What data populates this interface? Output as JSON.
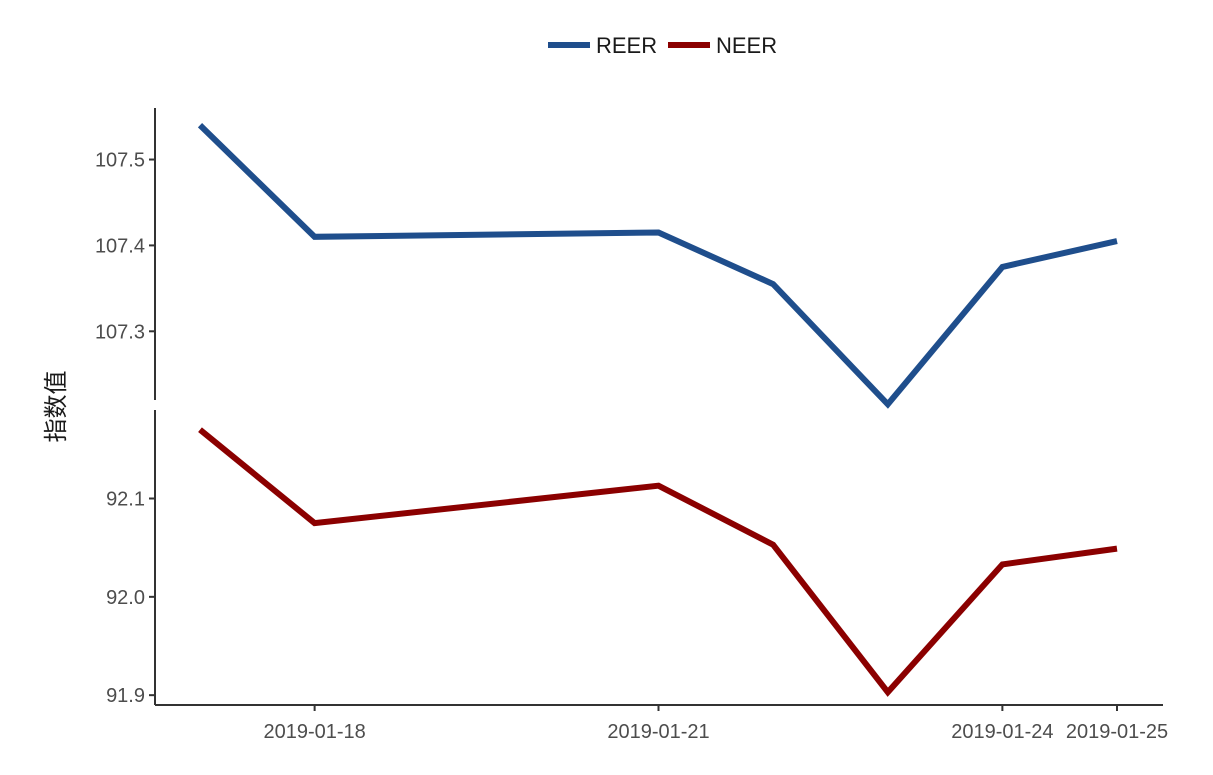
{
  "chart_data": {
    "type": "line",
    "title": "",
    "xlabel": "",
    "ylabel": "指数值",
    "legend_position": "top",
    "grid": false,
    "x": [
      "2019-01-17",
      "2019-01-18",
      "2019-01-21",
      "2019-01-22",
      "2019-01-23",
      "2019-01-24",
      "2019-01-25"
    ],
    "x_tick_labels": [
      "2019-01-18",
      "2019-01-21",
      "2019-01-24",
      "2019-01-25"
    ],
    "y_axis_break": true,
    "panels": [
      {
        "series": "REER",
        "ylim": [
          107.22,
          107.56
        ],
        "y_ticks": [
          "107.3",
          "107.4",
          "107.5"
        ]
      },
      {
        "series": "NEER",
        "ylim": [
          91.89,
          92.19
        ],
        "y_ticks": [
          "91.9",
          "92.0",
          "92.1"
        ]
      }
    ],
    "series": [
      {
        "name": "REER",
        "color": "#1f4e8c",
        "values": [
          107.54,
          107.41,
          107.415,
          107.355,
          107.215,
          107.375,
          107.405
        ]
      },
      {
        "name": "NEER",
        "color": "#8b0000",
        "values": [
          92.17,
          92.075,
          92.113,
          92.053,
          91.903,
          92.033,
          92.049
        ]
      }
    ]
  }
}
